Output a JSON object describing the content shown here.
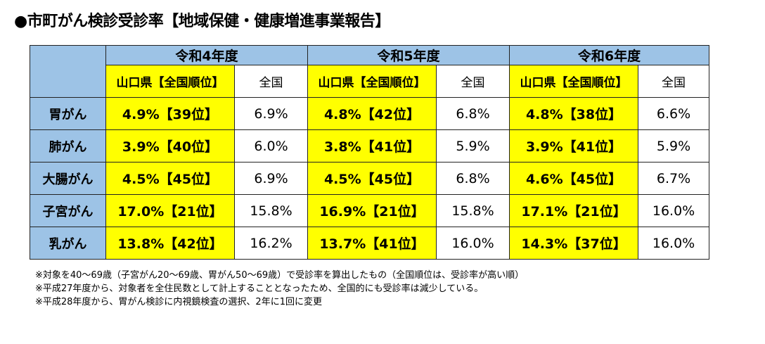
{
  "title": "●市町がん検診受診率【地域保健・健康増進事業報告】",
  "table": {
    "years": [
      "令和4年度",
      "令和5年度",
      "令和6年度"
    ],
    "sub_yamaguchi": "山口県【全国順位】",
    "sub_national": "全国",
    "rows": [
      {
        "label": "胃がん",
        "cells": [
          {
            "yamaguchi": "4.9%【39位】",
            "national": "6.9%"
          },
          {
            "yamaguchi": "4.8%【42位】",
            "national": "6.8%"
          },
          {
            "yamaguchi": "4.8%【38位】",
            "national": "6.6%"
          }
        ]
      },
      {
        "label": "肺がん",
        "cells": [
          {
            "yamaguchi": "3.9%【40位】",
            "national": "6.0%"
          },
          {
            "yamaguchi": "3.8%【41位】",
            "national": "5.9%"
          },
          {
            "yamaguchi": "3.9%【41位】",
            "national": "5.9%"
          }
        ]
      },
      {
        "label": "大腸がん",
        "cells": [
          {
            "yamaguchi": "4.5%【45位】",
            "national": "6.9%"
          },
          {
            "yamaguchi": "4.5%【45位】",
            "national": "6.8%"
          },
          {
            "yamaguchi": "4.6%【45位】",
            "national": "6.7%"
          }
        ]
      },
      {
        "label": "子宮がん",
        "cells": [
          {
            "yamaguchi": "17.0%【21位】",
            "national": "15.8%"
          },
          {
            "yamaguchi": "16.9%【21位】",
            "national": "15.8%"
          },
          {
            "yamaguchi": "17.1%【21位】",
            "national": "16.0%"
          }
        ]
      },
      {
        "label": "乳がん",
        "cells": [
          {
            "yamaguchi": "13.8%【42位】",
            "national": "16.2%"
          },
          {
            "yamaguchi": "13.7%【41位】",
            "national": "16.0%"
          },
          {
            "yamaguchi": "14.3%【37位】",
            "national": "16.0%"
          }
        ]
      }
    ]
  },
  "notes": [
    "※対象を40～69歳（子宮がん20～69歳、胃がん50～69歳）で受診率を算出したもの（全国順位は、受診率が高い順）",
    "※平成27年度から、対象者を全住民数として計上することとなったため、全国的にも受診率は減少している。",
    "※平成28年度から、胃がん検診に内視鏡検査の選択、2年に1回に変更"
  ],
  "colors": {
    "header_blue": "#9dc3e6",
    "highlight_yellow": "#ffff00"
  }
}
